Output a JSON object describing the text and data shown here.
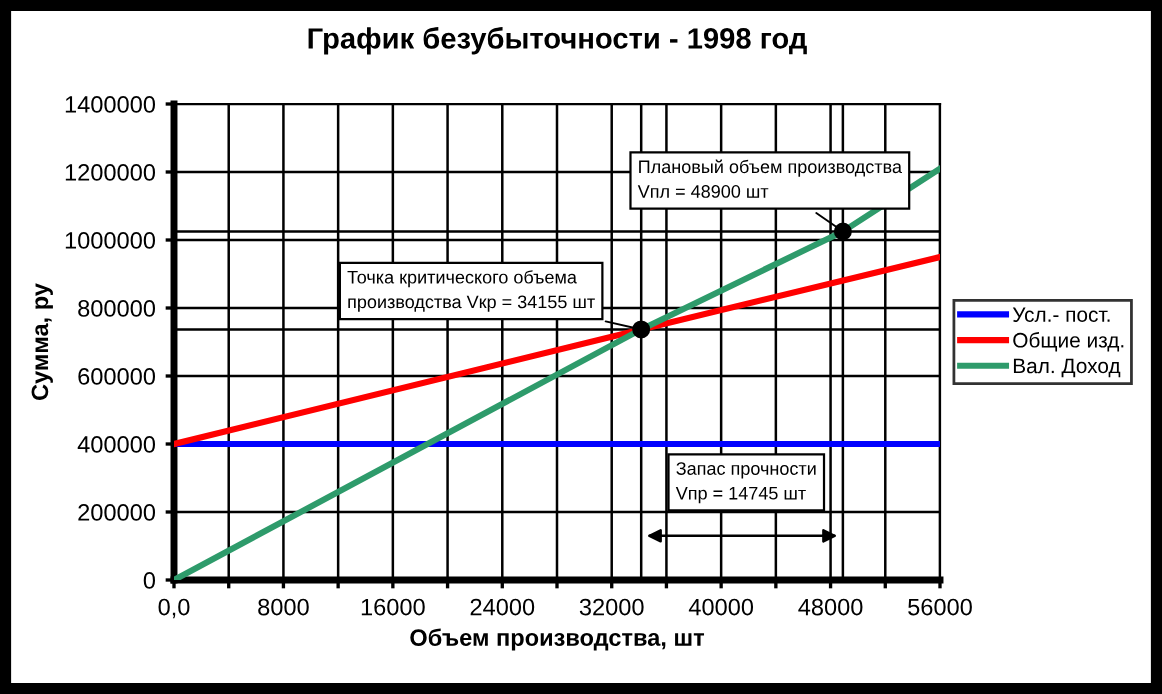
{
  "chart_data": {
    "type": "line",
    "title": "График безубыточности - 1998 год",
    "xlabel": "Объем производства, шт",
    "ylabel": "Сумма, ру",
    "xlim": [
      0,
      56000
    ],
    "ylim": [
      0,
      1400000
    ],
    "xticks": [
      {
        "value": 0,
        "label": "0,0"
      },
      {
        "value": 4000,
        "label": null
      },
      8000,
      {
        "value": 12000,
        "label": null
      },
      16000,
      {
        "value": 20000,
        "label": null
      },
      24000,
      {
        "value": 28000,
        "label": null
      },
      32000,
      {
        "value": 36000,
        "label": null
      },
      40000,
      {
        "value": 44000,
        "label": null
      },
      48000,
      {
        "value": 52000,
        "label": null
      },
      56000
    ],
    "yticks": [
      0,
      200000,
      400000,
      600000,
      800000,
      1000000,
      1200000,
      1400000
    ],
    "grid": true,
    "legend": "right",
    "line_style": "solid",
    "marker": "none",
    "series": [
      {
        "name": "Усл.- пост.",
        "color": "#0000ff",
        "x": [
          0,
          56000
        ],
        "values": [
          400000,
          400000
        ]
      },
      {
        "name": "Общие изд.",
        "color": "#ff0000",
        "x": [
          0,
          34155,
          56000
        ],
        "values": [
          400000,
          737000,
          950000
        ]
      },
      {
        "name": "Вал. Доход",
        "color": "#2e9b6b",
        "x": [
          0,
          34155,
          48900,
          56000
        ],
        "values": [
          0,
          737000,
          1025000,
          1210000
        ]
      },
      {
        "type": "scatter",
        "color": "#000000",
        "marker": "circle",
        "x": [
          34155,
          48900
        ],
        "values": [
          737000,
          1025000
        ]
      }
    ],
    "ref_lines": [
      {
        "axis": "x",
        "value": 34155,
        "color": "#000000"
      },
      {
        "axis": "x",
        "value": 48900,
        "color": "#000000"
      },
      {
        "axis": "y",
        "value": 737000,
        "color": "#000000"
      },
      {
        "axis": "y",
        "value": 1025000,
        "color": "#000000"
      }
    ],
    "annotations": [
      {
        "text": "Плановый объем производства\nVпл = 48900 шт",
        "x": 48900,
        "y": 1025000
      },
      {
        "text": "Точка критического объема\nпроизводства Vкр = 34155 шт",
        "x": 34155,
        "y": 737000
      },
      "Запас прочности\nVпр = 14745 шт"
    ]
  }
}
